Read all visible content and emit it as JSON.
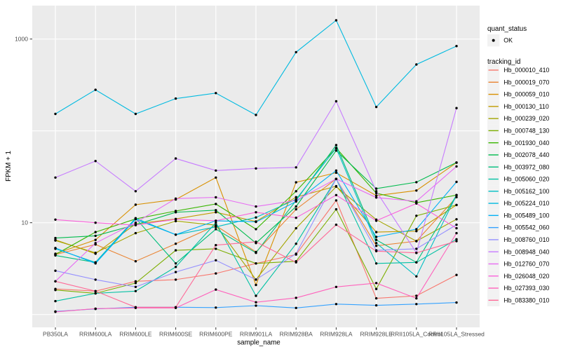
{
  "styles": {
    "page_bg": "#FFFFFF",
    "panel_bg": "#EBEBEB",
    "grid_color": "#FFFFFF",
    "tick_color": "#333333",
    "tick_label_color": "#4D4D4D",
    "text_color": "#000000",
    "legend_key_bg": "#F2F2F2",
    "point_color": "#000000"
  },
  "axes": {
    "x_title": "sample_name",
    "y_title": "FPKM + 1",
    "y_tick_labels": [
      "1000",
      "10"
    ],
    "y_tick_values": [
      1000,
      10
    ],
    "y_grid_values": [
      1,
      10,
      100,
      1000
    ]
  },
  "legend": {
    "quant": {
      "title": "quant_status",
      "items": [
        {
          "label": "OK",
          "marker": "point"
        }
      ]
    },
    "tracking": {
      "title": "tracking_id"
    }
  },
  "chart_data": {
    "type": "line",
    "title": "",
    "xlabel": "sample_name",
    "ylabel": "FPKM + 1",
    "y_scale": "log10",
    "ylim": [
      0.8,
      2300
    ],
    "y_breaks_labeled": [
      10,
      1000
    ],
    "grid": "on",
    "legend_position": "right",
    "point_markers": "black dot on every vertex",
    "categories": [
      "PB350LA",
      "RRIM600LA",
      "RRIM600LE",
      "RRIM600SE",
      "RRIM600PE",
      "RRIM901LA",
      "RRIM928BA",
      "RRIM928LA",
      "RRIM928LE",
      "RRII105LA_Control",
      "RRII105LA_Stressed"
    ],
    "series": [
      {
        "name": "Hb_000010_410",
        "color": "#F8766D",
        "values": [
          1.9,
          1.8,
          2.3,
          2.4,
          2.8,
          3.6,
          4.5,
          17.5,
          1.5,
          1.6,
          2.7
        ]
      },
      {
        "name": "Hb_000019_070",
        "color": "#EA8331",
        "values": [
          4.5,
          5.8,
          3.8,
          5.9,
          9.3,
          4.8,
          14,
          30,
          5.6,
          6.3,
          19
        ]
      },
      {
        "name": "Hb_000059_010",
        "color": "#D89000",
        "values": [
          4.6,
          6.5,
          15.7,
          17.9,
          31,
          2.1,
          27.5,
          35,
          19.7,
          22.4,
          45
        ]
      },
      {
        "name": "Hb_000130_110",
        "color": "#C09B00",
        "values": [
          6.5,
          4.6,
          9.7,
          11,
          13,
          10.3,
          19,
          25,
          7.9,
          8.1,
          15.6
        ]
      },
      {
        "name": "Hb_000239_020",
        "color": "#A3A500",
        "values": [
          6.4,
          4.7,
          7.7,
          10.4,
          9.4,
          2.4,
          8.7,
          24.7,
          10.8,
          6.3,
          10.9
        ]
      },
      {
        "name": "Hb_000748_130",
        "color": "#7CAE00",
        "values": [
          1.85,
          1.7,
          2.2,
          5.0,
          5.2,
          3.6,
          3.8,
          14,
          1.9,
          11.9,
          15.6
        ]
      },
      {
        "name": "Hb_001930_040",
        "color": "#39B600",
        "values": [
          4.5,
          7.9,
          11,
          13.4,
          16,
          8.5,
          22,
          65,
          21,
          16.5,
          20
        ]
      },
      {
        "name": "Hb_002078_440",
        "color": "#00BB4E",
        "values": [
          6.8,
          7.2,
          9.5,
          13,
          13.7,
          6.0,
          15,
          61,
          23.5,
          27.6,
          45.3
        ]
      },
      {
        "name": "Hb_003972_080",
        "color": "#00BF7D",
        "values": [
          4.4,
          3.7,
          11.2,
          3.6,
          8.5,
          4.7,
          17.5,
          70,
          6.5,
          3.7,
          20
        ]
      },
      {
        "name": "Hb_005060_020",
        "color": "#00C1A3",
        "values": [
          1.4,
          1.7,
          1.8,
          3.3,
          10,
          1.6,
          5.9,
          30,
          3.6,
          3.7,
          6.6
        ]
      },
      {
        "name": "Hb_005162_100",
        "color": "#00BFC4",
        "values": [
          5.2,
          3.7,
          11.2,
          7.4,
          9.0,
          11.4,
          18,
          65,
          6.0,
          2.6,
          20
        ]
      },
      {
        "name": "Hb_005224_010",
        "color": "#00BAE0",
        "values": [
          153,
          280,
          153,
          225,
          258,
          149,
          720,
          1600,
          182,
          528,
          839
        ]
      },
      {
        "name": "Hb_005489_100",
        "color": "#00B0F6",
        "values": [
          5.3,
          3.6,
          10.9,
          7.4,
          10.5,
          10.2,
          17,
          37,
          7.0,
          8.5,
          27.8
        ]
      },
      {
        "name": "Hb_005542_060",
        "color": "#35A2FF",
        "values": [
          1.08,
          1.15,
          1.2,
          1.2,
          1.19,
          1.25,
          1.18,
          1.3,
          1.26,
          1.3,
          1.35
        ]
      },
      {
        "name": "Hb_008760_010",
        "color": "#9590FF",
        "values": [
          3.0,
          2.4,
          2.0,
          2.9,
          3.9,
          2.4,
          4.6,
          30,
          5.0,
          5.2,
          9.5
        ]
      },
      {
        "name": "Hb_008948_040",
        "color": "#C77CFF",
        "values": [
          31,
          47,
          22,
          50,
          37,
          39,
          40,
          210,
          22,
          4.7,
          177
        ]
      },
      {
        "name": "Hb_012760_070",
        "color": "#E76BF3",
        "values": [
          2.3,
          6.0,
          10,
          18.3,
          18.9,
          15,
          17.5,
          30,
          18.8,
          17.1,
          41
        ]
      },
      {
        "name": "Hb_026048_020",
        "color": "#FA62DB",
        "values": [
          10.8,
          10,
          9.4,
          10.9,
          10.5,
          13,
          11.3,
          20,
          10.5,
          16.2,
          8.7
        ]
      },
      {
        "name": "Hb_027393_030",
        "color": "#FF62BC",
        "values": [
          1.07,
          1.16,
          1.18,
          1.18,
          1.87,
          1.36,
          1.52,
          2.0,
          2.2,
          1.5,
          7.7
        ]
      },
      {
        "name": "Hb_083380_010",
        "color": "#FF6A98",
        "values": [
          2.3,
          1.8,
          1.2,
          1.2,
          5.7,
          6.2,
          3.7,
          9.5,
          4.9,
          4.7,
          6.3
        ]
      }
    ]
  }
}
